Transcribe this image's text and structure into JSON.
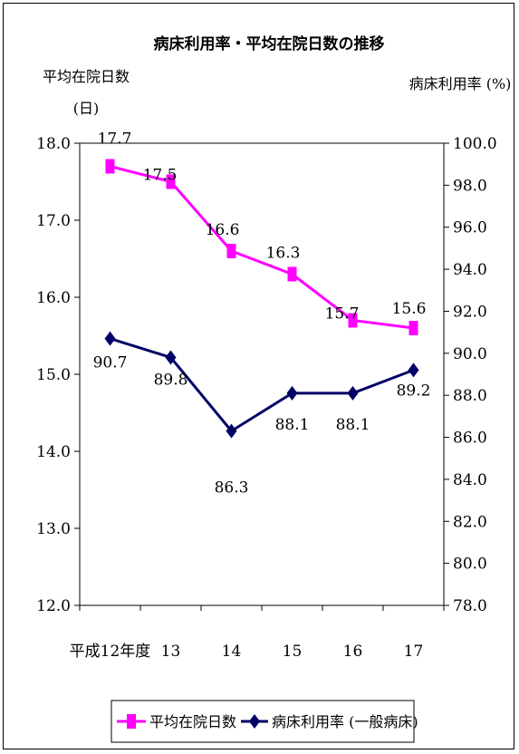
{
  "chart_data": {
    "type": "line",
    "title": "病床利用率・平均在院日数の推移",
    "categories": [
      "平成12年度",
      "13",
      "14",
      "15",
      "16",
      "17"
    ],
    "left_axis": {
      "label_line1": "平均在院日数",
      "label_line2": "(日)",
      "range": [
        12.0,
        18.0
      ],
      "ticks": [
        "12.0",
        "13.0",
        "14.0",
        "15.0",
        "16.0",
        "17.0",
        "18.0"
      ]
    },
    "right_axis": {
      "label": "病床利用率 (%)",
      "range": [
        78.0,
        100.0
      ],
      "ticks": [
        "78.0",
        "80.0",
        "82.0",
        "84.0",
        "86.0",
        "88.0",
        "90.0",
        "92.0",
        "94.0",
        "96.0",
        "98.0",
        "100.0"
      ]
    },
    "series": [
      {
        "name": "平均在院日数",
        "axis": "left",
        "color": "#ff00ff",
        "marker": "square",
        "values": [
          17.7,
          17.5,
          16.6,
          16.3,
          15.7,
          15.6
        ],
        "labels": [
          "17.7",
          "17.5",
          "16.6",
          "16.3",
          "15.7",
          "15.6"
        ]
      },
      {
        "name": "病床利用率 (一般病床)",
        "axis": "right",
        "color": "#000066",
        "marker": "diamond",
        "values": [
          90.7,
          89.8,
          86.3,
          88.1,
          88.1,
          89.2
        ],
        "labels": [
          "90.7",
          "89.8",
          "86.3",
          "88.1",
          "88.1",
          "89.2"
        ]
      }
    ],
    "grid": false,
    "legend": "bottom"
  }
}
